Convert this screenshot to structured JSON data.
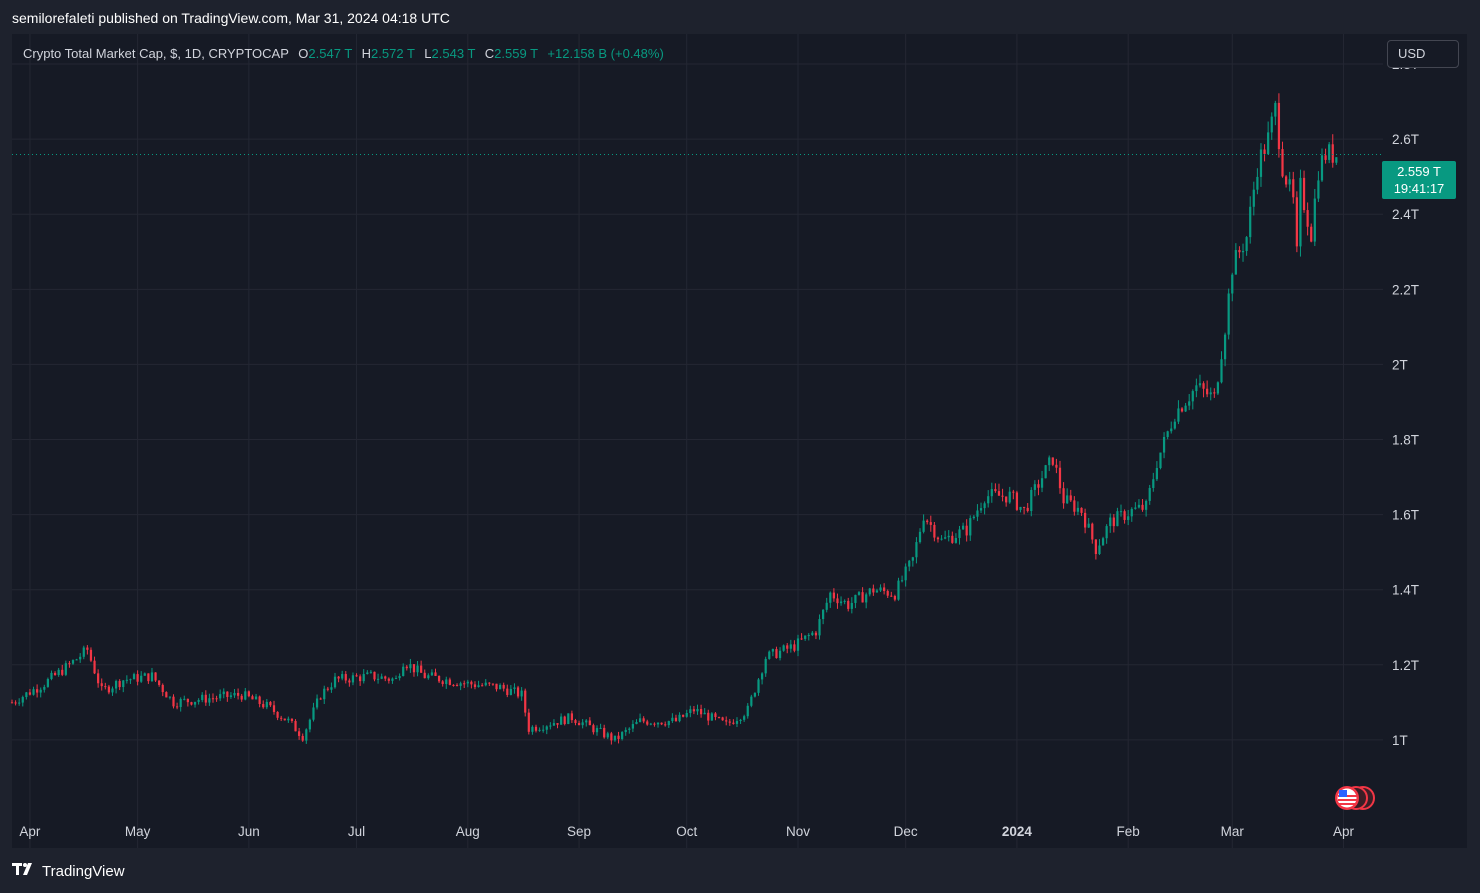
{
  "header": {
    "published_by": "semilorefaleti published on TradingView.com, Mar 31, 2024 04:18 UTC"
  },
  "legend": {
    "symbol": "Crypto Total Market Cap, $, 1D, CRYPTOCAP",
    "o_label": "O",
    "o_value": "2.547 T",
    "h_label": "H",
    "h_value": "2.572 T",
    "l_label": "L",
    "l_value": "2.543 T",
    "c_label": "C",
    "c_value": "2.559 T",
    "change": "+12.158 B (+0.48%)"
  },
  "currency_button": {
    "label": "USD"
  },
  "price_tag": {
    "price": "2.559 T",
    "countdown": "19:41:17"
  },
  "footer": {
    "brand": "TradingView"
  },
  "colors": {
    "up": "#089981",
    "down": "#f23645",
    "background": "#161a25",
    "grid": "#242733"
  },
  "icons": {
    "logo": "tradingview-logo-icon",
    "flags": "us-flag-event-icon"
  },
  "chart_data": {
    "type": "candlestick",
    "title": "Crypto Total Market Cap, $, 1D, CRYPTOCAP",
    "x_range": [
      "2023-03-27",
      "2024-04-12"
    ],
    "ylim": [
      0.8,
      2.88
    ],
    "y_unit": "T",
    "y_ticks": [
      "2.8T",
      "2.6T",
      "2.4T",
      "2.2T",
      "2T",
      "1.8T",
      "1.6T",
      "1.4T",
      "1.2T",
      "1T"
    ],
    "y_tick_values": [
      2.8,
      2.6,
      2.4,
      2.2,
      2.0,
      1.8,
      1.6,
      1.4,
      1.2,
      1.0
    ],
    "x_ticks": [
      {
        "label": "Apr",
        "date": "2023-04-01"
      },
      {
        "label": "May",
        "date": "2023-05-01"
      },
      {
        "label": "Jun",
        "date": "2023-06-01"
      },
      {
        "label": "Jul",
        "date": "2023-07-01"
      },
      {
        "label": "Aug",
        "date": "2023-08-01"
      },
      {
        "label": "Sep",
        "date": "2023-09-01"
      },
      {
        "label": "Oct",
        "date": "2023-10-01"
      },
      {
        "label": "Nov",
        "date": "2023-11-01"
      },
      {
        "label": "Dec",
        "date": "2023-12-01"
      },
      {
        "label": "2024",
        "date": "2024-01-01",
        "bold": true
      },
      {
        "label": "Feb",
        "date": "2024-02-01"
      },
      {
        "label": "Mar",
        "date": "2024-03-01"
      },
      {
        "label": "Apr",
        "date": "2024-04-01"
      }
    ],
    "last_price": 2.559,
    "grid": true,
    "close_path": [
      [
        "2023-03-27",
        1.1
      ],
      [
        "2023-04-05",
        1.15
      ],
      [
        "2023-04-12",
        1.2
      ],
      [
        "2023-04-17",
        1.24
      ],
      [
        "2023-04-21",
        1.13
      ],
      [
        "2023-04-27",
        1.16
      ],
      [
        "2023-05-05",
        1.17
      ],
      [
        "2023-05-11",
        1.1
      ],
      [
        "2023-05-20",
        1.11
      ],
      [
        "2023-05-30",
        1.12
      ],
      [
        "2023-06-06",
        1.09
      ],
      [
        "2023-06-12",
        1.05
      ],
      [
        "2023-06-16",
        1.01
      ],
      [
        "2023-06-21",
        1.12
      ],
      [
        "2023-06-25",
        1.16
      ],
      [
        "2023-07-05",
        1.17
      ],
      [
        "2023-07-12",
        1.16
      ],
      [
        "2023-07-14",
        1.21
      ],
      [
        "2023-07-20",
        1.17
      ],
      [
        "2023-08-01",
        1.15
      ],
      [
        "2023-08-10",
        1.14
      ],
      [
        "2023-08-16",
        1.12
      ],
      [
        "2023-08-18",
        1.03
      ],
      [
        "2023-08-30",
        1.06
      ],
      [
        "2023-09-05",
        1.03
      ],
      [
        "2023-09-11",
        1.0
      ],
      [
        "2023-09-18",
        1.05
      ],
      [
        "2023-09-28",
        1.05
      ],
      [
        "2023-10-03",
        1.08
      ],
      [
        "2023-10-12",
        1.04
      ],
      [
        "2023-10-18",
        1.08
      ],
      [
        "2023-10-23",
        1.22
      ],
      [
        "2023-10-31",
        1.25
      ],
      [
        "2023-11-06",
        1.29
      ],
      [
        "2023-11-10",
        1.39
      ],
      [
        "2023-11-15",
        1.36
      ],
      [
        "2023-11-22",
        1.4
      ],
      [
        "2023-11-28",
        1.39
      ],
      [
        "2023-12-03",
        1.48
      ],
      [
        "2023-12-06",
        1.6
      ],
      [
        "2023-12-11",
        1.53
      ],
      [
        "2023-12-18",
        1.56
      ],
      [
        "2023-12-23",
        1.65
      ],
      [
        "2023-12-30",
        1.65
      ],
      [
        "2024-01-03",
        1.61
      ],
      [
        "2024-01-08",
        1.7
      ],
      [
        "2024-01-11",
        1.75
      ],
      [
        "2024-01-14",
        1.64
      ],
      [
        "2024-01-19",
        1.61
      ],
      [
        "2024-01-23",
        1.51
      ],
      [
        "2024-01-27",
        1.58
      ],
      [
        "2024-02-02",
        1.61
      ],
      [
        "2024-02-06",
        1.62
      ],
      [
        "2024-02-09",
        1.74
      ],
      [
        "2024-02-14",
        1.87
      ],
      [
        "2024-02-20",
        1.94
      ],
      [
        "2024-02-25",
        1.91
      ],
      [
        "2024-02-28",
        2.1
      ],
      [
        "2024-03-01",
        2.26
      ],
      [
        "2024-03-05",
        2.34
      ],
      [
        "2024-03-08",
        2.53
      ],
      [
        "2024-03-11",
        2.6
      ],
      [
        "2024-03-13",
        2.68
      ],
      [
        "2024-03-15",
        2.53
      ],
      [
        "2024-03-18",
        2.43
      ],
      [
        "2024-03-19",
        2.29
      ],
      [
        "2024-03-20",
        2.47
      ],
      [
        "2024-03-23",
        2.35
      ],
      [
        "2024-03-25",
        2.52
      ],
      [
        "2024-03-27",
        2.56
      ],
      [
        "2024-03-30",
        2.559
      ]
    ]
  }
}
